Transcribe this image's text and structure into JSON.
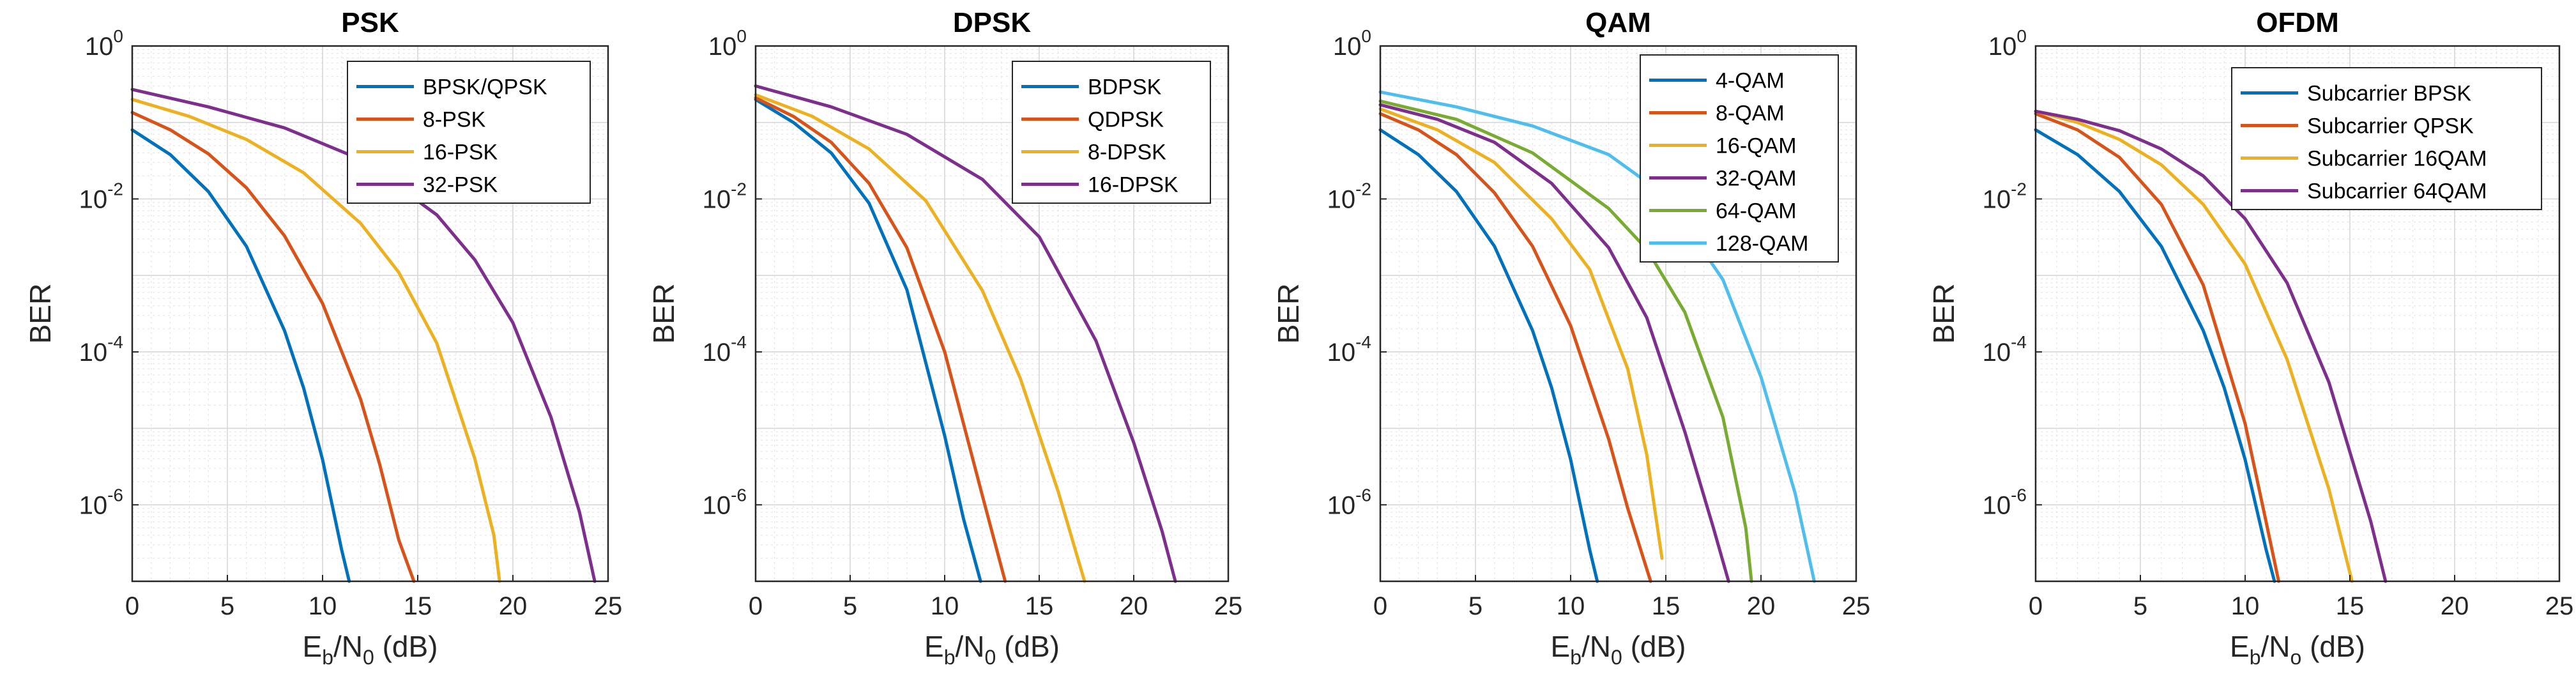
{
  "chart_data": [
    {
      "type": "line",
      "title": "PSK",
      "xlabel": {
        "main": "E",
        "sub": "b",
        "mid": "/N",
        "sub2": "0",
        "unit": " (dB)"
      },
      "ylabel": "BER",
      "xlim": [
        0,
        25
      ],
      "ylim_log10": [
        -7,
        0
      ],
      "yscale": "log",
      "xticks": [
        "0",
        "5",
        "10",
        "15",
        "20",
        "25"
      ],
      "yticks": [
        {
          "base": "10",
          "exp": "0"
        },
        {
          "base": "10",
          "exp": "-2"
        },
        {
          "base": "10",
          "exp": "-4"
        },
        {
          "base": "10",
          "exp": "-6"
        }
      ],
      "legend_position": "top-right",
      "series": [
        {
          "name": "BPSK/QPSK",
          "color": "#0072BD",
          "x": [
            0,
            2,
            4,
            6,
            8,
            9,
            10,
            11,
            11.4
          ],
          "y": [
            0.08,
            0.038,
            0.0125,
            0.0024,
            0.00019,
            3.4e-05,
            3.9e-06,
            2.6e-07,
            1e-07
          ]
        },
        {
          "name": "8-PSK",
          "color": "#D95319",
          "x": [
            0,
            2,
            4,
            6,
            8,
            10,
            12,
            13,
            14,
            14.8
          ],
          "y": [
            0.135,
            0.08,
            0.039,
            0.014,
            0.0033,
            0.00043,
            2.4e-05,
            3.4e-06,
            3.5e-07,
            1e-07
          ]
        },
        {
          "name": "16-PSK",
          "color": "#EDB120",
          "x": [
            0,
            3,
            6,
            9,
            12,
            14,
            16,
            18,
            19,
            19.3
          ],
          "y": [
            0.2,
            0.12,
            0.06,
            0.022,
            0.0048,
            0.0011,
            0.00013,
            4e-06,
            4e-07,
            1e-07
          ]
        },
        {
          "name": "32-PSK",
          "color": "#7E2F8E",
          "x": [
            0,
            4,
            8,
            12,
            16,
            18,
            20,
            22,
            23.5,
            24.3
          ],
          "y": [
            0.27,
            0.16,
            0.085,
            0.033,
            0.0062,
            0.0016,
            0.00024,
            1.4e-05,
            8e-07,
            1e-07
          ]
        }
      ]
    },
    {
      "type": "line",
      "title": "DPSK",
      "xlabel": {
        "main": "E",
        "sub": "b",
        "mid": "/N",
        "sub2": "0",
        "unit": " (dB)"
      },
      "ylabel": "BER",
      "xlim": [
        0,
        25
      ],
      "ylim_log10": [
        -7,
        0
      ],
      "yscale": "log",
      "xticks": [
        "0",
        "5",
        "10",
        "15",
        "20",
        "25"
      ],
      "yticks": [
        {
          "base": "10",
          "exp": "0"
        },
        {
          "base": "10",
          "exp": "-2"
        },
        {
          "base": "10",
          "exp": "-4"
        },
        {
          "base": "10",
          "exp": "-6"
        }
      ],
      "legend_position": "top-right",
      "series": [
        {
          "name": "BDPSK",
          "color": "#0072BD",
          "x": [
            0,
            2,
            4,
            6,
            8,
            10,
            11,
            11.9
          ],
          "y": [
            0.2,
            0.1,
            0.04,
            0.0088,
            0.00065,
            8e-06,
            6.5e-07,
            1e-07
          ]
        },
        {
          "name": "QDPSK",
          "color": "#D95319",
          "x": [
            0,
            2,
            4,
            6,
            8,
            10,
            12,
            13.2
          ],
          "y": [
            0.21,
            0.12,
            0.055,
            0.016,
            0.0023,
            0.0001,
            1.3e-06,
            1e-07
          ]
        },
        {
          "name": "8-DPSK",
          "color": "#EDB120",
          "x": [
            0,
            3,
            6,
            9,
            12,
            14,
            16,
            17.4
          ],
          "y": [
            0.23,
            0.12,
            0.045,
            0.0095,
            0.00063,
            4.5e-05,
            1.5e-06,
            1e-07
          ]
        },
        {
          "name": "16-DPSK",
          "color": "#7E2F8E",
          "x": [
            0,
            4,
            8,
            12,
            15,
            18,
            20,
            21.5,
            22.2
          ],
          "y": [
            0.3,
            0.16,
            0.07,
            0.018,
            0.0032,
            0.00014,
            6.5e-06,
            4.5e-07,
            1e-07
          ]
        }
      ]
    },
    {
      "type": "line",
      "title": "QAM",
      "xlabel": {
        "main": "E",
        "sub": "b",
        "mid": "/N",
        "sub2": "0",
        "unit": " (dB)"
      },
      "ylabel": "BER",
      "xlim": [
        0,
        25
      ],
      "ylim_log10": [
        -7,
        0
      ],
      "yscale": "log",
      "xticks": [
        "0",
        "5",
        "10",
        "15",
        "20",
        "25"
      ],
      "yticks": [
        {
          "base": "10",
          "exp": "0"
        },
        {
          "base": "10",
          "exp": "-2"
        },
        {
          "base": "10",
          "exp": "-4"
        },
        {
          "base": "10",
          "exp": "-6"
        }
      ],
      "legend_position": "top-right",
      "series": [
        {
          "name": "4-QAM",
          "color": "#0072BD",
          "x": [
            0,
            2,
            4,
            6,
            8,
            9,
            10,
            11,
            11.4
          ],
          "y": [
            0.08,
            0.038,
            0.0125,
            0.0024,
            0.00019,
            3.4e-05,
            3.9e-06,
            2.6e-07,
            1e-07
          ]
        },
        {
          "name": "8-QAM",
          "color": "#D95319",
          "x": [
            0,
            2,
            4,
            6,
            8,
            10,
            12,
            13,
            14.2
          ],
          "y": [
            0.13,
            0.08,
            0.038,
            0.012,
            0.0024,
            0.00022,
            7.2e-06,
            9e-07,
            1e-07
          ]
        },
        {
          "name": "16-QAM",
          "color": "#EDB120",
          "x": [
            0,
            3,
            6,
            9,
            11,
            13,
            14,
            14.8
          ],
          "y": [
            0.15,
            0.08,
            0.03,
            0.0055,
            0.0012,
            6e-05,
            4.5e-06,
            2e-07
          ]
        },
        {
          "name": "32-QAM",
          "color": "#7E2F8E",
          "x": [
            0,
            3,
            6,
            9,
            12,
            14,
            16,
            17.5,
            18.3
          ],
          "y": [
            0.17,
            0.11,
            0.055,
            0.016,
            0.0023,
            0.00028,
            9e-06,
            5e-07,
            1e-07
          ]
        },
        {
          "name": "64-QAM",
          "color": "#77AC30",
          "x": [
            0,
            4,
            8,
            12,
            14,
            16,
            18,
            19.2,
            19.5
          ],
          "y": [
            0.19,
            0.11,
            0.04,
            0.0075,
            0.0022,
            0.00033,
            1.4e-05,
            5e-07,
            1e-07
          ]
        },
        {
          "name": "128-QAM",
          "color": "#4DBEEE",
          "x": [
            0,
            4,
            8,
            12,
            15,
            18,
            20,
            21.8,
            22.8
          ],
          "y": [
            0.25,
            0.16,
            0.09,
            0.038,
            0.011,
            0.00088,
            4.7e-05,
            1.4e-06,
            1e-07
          ]
        }
      ]
    },
    {
      "type": "line",
      "title": "OFDM",
      "xlabel": {
        "main": "E",
        "sub": "b",
        "mid": "/N",
        "sub2": "o",
        "unit": " (dB)"
      },
      "ylabel": "BER",
      "xlim": [
        0,
        25
      ],
      "ylim_log10": [
        -7,
        0
      ],
      "yscale": "log",
      "xticks": [
        "0",
        "5",
        "10",
        "15",
        "20",
        "25"
      ],
      "yticks": [
        {
          "base": "10",
          "exp": "0"
        },
        {
          "base": "10",
          "exp": "-2"
        },
        {
          "base": "10",
          "exp": "-4"
        },
        {
          "base": "10",
          "exp": "-6"
        }
      ],
      "legend_position": "top-right",
      "series": [
        {
          "name": "Subcarrier BPSK",
          "color": "#0072BD",
          "x": [
            0,
            2,
            4,
            6,
            8,
            9,
            10,
            11,
            11.4
          ],
          "y": [
            0.08,
            0.038,
            0.0125,
            0.0024,
            0.00019,
            3.4e-05,
            3.9e-06,
            2.6e-07,
            1e-07
          ]
        },
        {
          "name": "Subcarrier QPSK",
          "color": "#D95319",
          "x": [
            0,
            2,
            4,
            6,
            8,
            10,
            11,
            11.6
          ],
          "y": [
            0.13,
            0.08,
            0.035,
            0.0085,
            0.00075,
            1.15e-05,
            6e-07,
            1e-07
          ]
        },
        {
          "name": "Subcarrier 16QAM",
          "color": "#EDB120",
          "x": [
            0,
            2,
            4,
            6,
            8,
            10,
            12,
            14,
            15.1
          ],
          "y": [
            0.14,
            0.1,
            0.06,
            0.028,
            0.0085,
            0.0014,
            8e-05,
            1.6e-06,
            1e-07
          ]
        },
        {
          "name": "Subcarrier 64QAM",
          "color": "#7E2F8E",
          "x": [
            0,
            2,
            4,
            6,
            8,
            10,
            12,
            14,
            16,
            16.7
          ],
          "y": [
            0.14,
            0.11,
            0.078,
            0.045,
            0.02,
            0.0055,
            0.0008,
            4e-05,
            6e-07,
            1e-07
          ]
        }
      ]
    }
  ]
}
